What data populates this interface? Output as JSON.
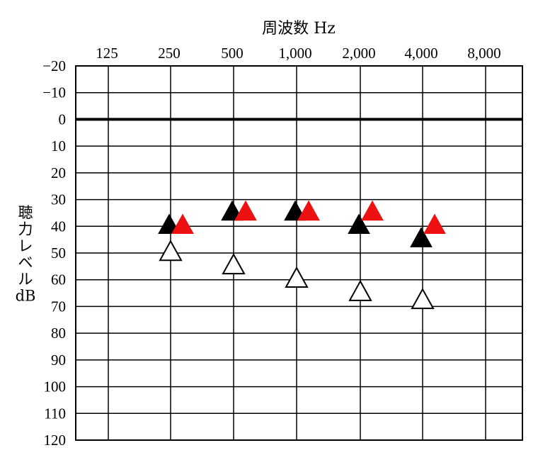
{
  "chart_data": {
    "type": "scatter",
    "title": "",
    "xlabel": "周波数 Hz",
    "ylabel_chars": [
      "聴",
      "力",
      "レ",
      "ベ",
      "ル",
      "dB"
    ],
    "x_tick_labels": [
      "125",
      "250",
      "500",
      "1,000",
      "2,000",
      "4,000",
      "8,000"
    ],
    "y_tick_labels": [
      "−20",
      "−10",
      "0",
      "10",
      "20",
      "30",
      "40",
      "50",
      "60",
      "70",
      "80",
      "90",
      "100",
      "110",
      "120"
    ],
    "y_values": [
      -20,
      -10,
      0,
      10,
      20,
      30,
      40,
      50,
      60,
      70,
      80,
      90,
      100,
      110,
      120
    ],
    "ylim": [
      -20,
      120
    ],
    "y_inverted": true,
    "grid": true,
    "reference_line_db": 0,
    "series": [
      {
        "color": "#000000",
        "marker": "filled-triangle",
        "points": [
          {
            "freq": "250",
            "db": 40
          },
          {
            "freq": "500",
            "db": 35
          },
          {
            "freq": "1,000",
            "db": 35
          },
          {
            "freq": "2,000",
            "db": 40
          },
          {
            "freq": "4,000",
            "db": 45
          }
        ]
      },
      {
        "color": "#ee1111",
        "marker": "filled-triangle",
        "points": [
          {
            "freq": "250",
            "db": 40
          },
          {
            "freq": "500",
            "db": 35
          },
          {
            "freq": "1,000",
            "db": 35
          },
          {
            "freq": "2,000",
            "db": 35
          },
          {
            "freq": "4,000",
            "db": 40
          }
        ]
      },
      {
        "color": "#000000",
        "marker": "open-triangle",
        "points": [
          {
            "freq": "250",
            "db": 50
          },
          {
            "freq": "500",
            "db": 55
          },
          {
            "freq": "1,000",
            "db": 60
          },
          {
            "freq": "2,000",
            "db": 65
          },
          {
            "freq": "4,000",
            "db": 68
          }
        ]
      }
    ]
  }
}
